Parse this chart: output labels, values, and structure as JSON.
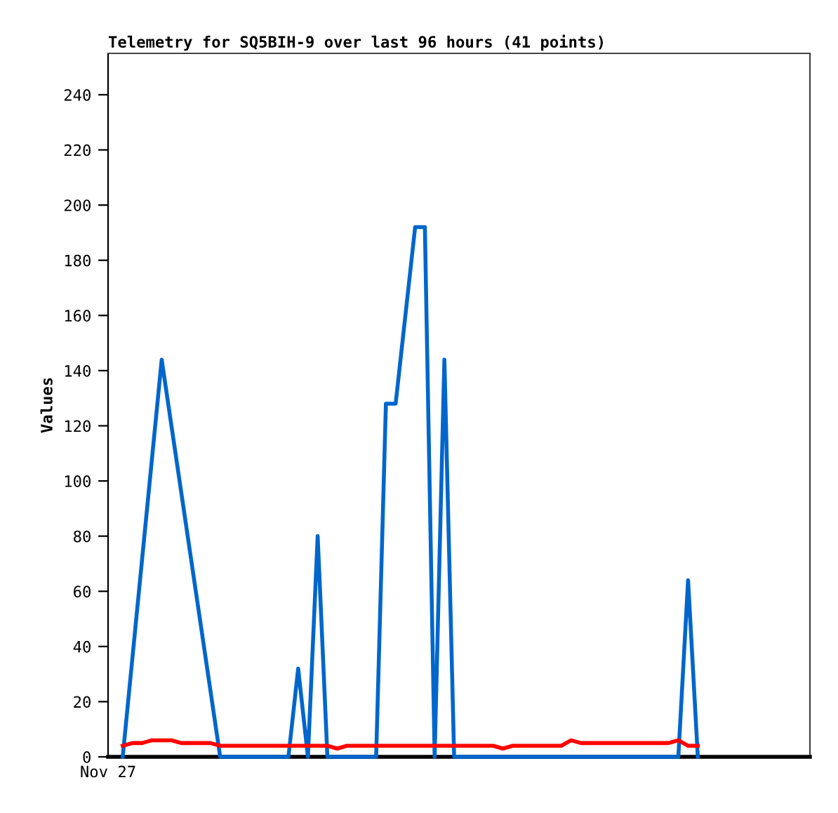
{
  "chart_data": {
    "type": "line",
    "title": "Telemetry for SQ5BIH-9 over last 96 hours (41 points)",
    "ylabel": "Values",
    "annotations": [
      "Nov 27"
    ],
    "categories": [
      null,
      null,
      null,
      null,
      null,
      null,
      null,
      null,
      null,
      null,
      null,
      null,
      null,
      null,
      null,
      null,
      null,
      null,
      null,
      null,
      null,
      null,
      null,
      null,
      null,
      null,
      null,
      null,
      null,
      null,
      null,
      null,
      null,
      null,
      null,
      null,
      null,
      null,
      null,
      null,
      null,
      null,
      null,
      null,
      null,
      null,
      null,
      null,
      null,
      null,
      null,
      null,
      null,
      null,
      null,
      null,
      null,
      null,
      null,
      null,
      null,
      null,
      null,
      null,
      null,
      null,
      null,
      null,
      null,
      null,
      null,
      null
    ],
    "ylim": [
      0,
      255
    ],
    "yticks": [
      0,
      20,
      40,
      60,
      80,
      100,
      120,
      140,
      160,
      180,
      200,
      220,
      240
    ],
    "grid": false,
    "legend": false,
    "marker": "none",
    "line_style": "solid",
    "series": [
      {
        "color": "#0066cc",
        "values": [
          null,
          0,
          36,
          72,
          108,
          144,
          120,
          96,
          72,
          48,
          24,
          0,
          0,
          0,
          0,
          0,
          0,
          0,
          0,
          32,
          0,
          80,
          0,
          0,
          0,
          0,
          0,
          0,
          128,
          128,
          160,
          192,
          192,
          0,
          144,
          0,
          0,
          0,
          0,
          0,
          0,
          0,
          0,
          0,
          0,
          0,
          0,
          0,
          0,
          0,
          0,
          0,
          0,
          0,
          0,
          0,
          0,
          0,
          0,
          64,
          0,
          null,
          null,
          null,
          null,
          null,
          null,
          null,
          null,
          null,
          null,
          null
        ]
      },
      {
        "color": "#ff0000",
        "values": [
          null,
          4,
          5,
          5,
          6,
          6,
          6,
          5,
          5,
          5,
          5,
          4,
          4,
          4,
          4,
          4,
          4,
          4,
          4,
          4,
          4,
          4,
          4,
          3,
          4,
          4,
          4,
          4,
          4,
          4,
          4,
          4,
          4,
          4,
          4,
          4,
          4,
          4,
          4,
          4,
          3,
          4,
          4,
          4,
          4,
          4,
          4,
          6,
          5,
          5,
          5,
          5,
          5,
          5,
          5,
          5,
          5,
          5,
          6,
          4,
          4,
          null,
          null,
          null,
          null,
          null,
          null,
          null,
          null,
          null,
          null,
          null
        ]
      }
    ]
  }
}
